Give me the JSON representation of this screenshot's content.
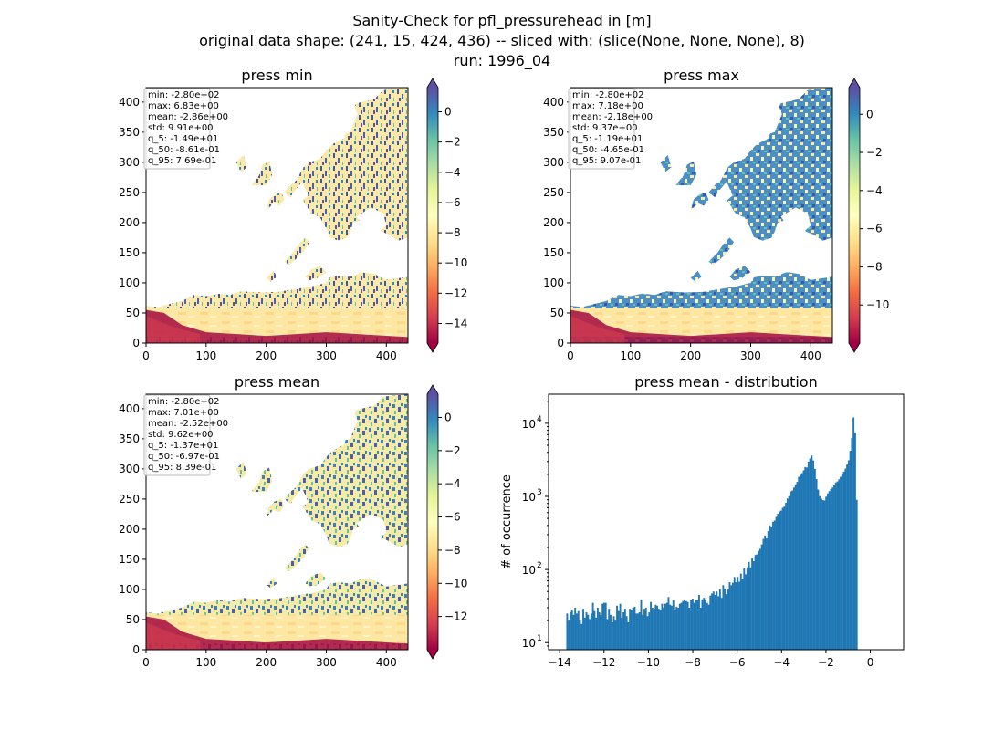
{
  "figure": {
    "title_lines": [
      "Sanity-Check for pfl_pressurehead in [m]",
      "original data shape: (241, 15, 424, 436) -- sliced with: (slice(None, None, None), 8)",
      "run: 1996_04"
    ]
  },
  "chart_data": [
    {
      "type": "heatmap",
      "title": "press min",
      "x_ticks": [
        0,
        100,
        200,
        300,
        400
      ],
      "y_ticks": [
        0,
        50,
        100,
        150,
        200,
        250,
        300,
        350,
        400
      ],
      "xlim": [
        0,
        436
      ],
      "ylim": [
        0,
        424
      ],
      "stats": [
        "min: -2.80e+02",
        "max: 6.83e+00",
        "mean: -2.86e+00",
        "std: 9.91e+00",
        "q_5: -1.49e+01",
        "q_50: -8.61e-01",
        "q_95: 7.69e-01"
      ],
      "colorbar": {
        "min": -15.3,
        "max": 1.6,
        "ticks": [
          0,
          -2,
          -4,
          -6,
          -8,
          -10,
          -12,
          -14
        ],
        "cmap": "Spectral"
      }
    },
    {
      "type": "heatmap",
      "title": "press max",
      "x_ticks": [
        0,
        100,
        200,
        300,
        400
      ],
      "y_ticks": [
        0,
        50,
        100,
        150,
        200,
        250,
        300,
        350,
        400
      ],
      "xlim": [
        0,
        436
      ],
      "ylim": [
        0,
        424
      ],
      "stats": [
        "min: -2.80e+02",
        "max: 7.18e+00",
        "mean: -2.18e+00",
        "std: 9.37e+00",
        "q_5: -1.19e+01",
        "q_50: -4.65e-01",
        "q_95: 9.07e-01"
      ],
      "colorbar": {
        "min": -12.0,
        "max": 1.4,
        "ticks": [
          0,
          -2,
          -4,
          -6,
          -8,
          -10
        ],
        "cmap": "Spectral"
      }
    },
    {
      "type": "heatmap",
      "title": "press mean",
      "x_ticks": [
        0,
        100,
        200,
        300,
        400
      ],
      "y_ticks": [
        0,
        50,
        100,
        150,
        200,
        250,
        300,
        350,
        400
      ],
      "xlim": [
        0,
        436
      ],
      "ylim": [
        0,
        424
      ],
      "stats": [
        "min: -2.80e+02",
        "max: 7.01e+00",
        "mean: -2.52e+00",
        "std: 9.62e+00",
        "q_5: -1.37e+01",
        "q_50: -6.97e-01",
        "q_95: 8.39e-01"
      ],
      "colorbar": {
        "min": -14.0,
        "max": 1.4,
        "ticks": [
          0,
          -2,
          -4,
          -6,
          -8,
          -10,
          -12
        ],
        "cmap": "Spectral"
      }
    },
    {
      "type": "bar",
      "title": "press mean - distribution",
      "xlabel": "",
      "ylabel": "# of occurrence",
      "yscale": "log",
      "color": "#1f77b4",
      "xlim": [
        -14.5,
        1.5
      ],
      "ylim": [
        8,
        25000
      ],
      "x_ticks": [
        -14,
        -12,
        -10,
        -8,
        -6,
        -4,
        -2,
        0
      ],
      "x_tick_labels": [
        "−14",
        "−12",
        "−10",
        "−8",
        "−6",
        "−4",
        "−2",
        "0"
      ],
      "y_ticks": [
        10,
        100,
        1000,
        10000
      ],
      "y_tick_labels": [
        "10",
        "10",
        "10",
        "10"
      ],
      "y_tick_exponents": [
        "1",
        "2",
        "3",
        "4"
      ],
      "bin_start": -13.7,
      "bin_width": 0.0725,
      "values": [
        25,
        20,
        26,
        28,
        24,
        30,
        25,
        27,
        20,
        18,
        29,
        22,
        26,
        24,
        21,
        25,
        35,
        27,
        22,
        30,
        26,
        24,
        34,
        35,
        35,
        21,
        29,
        24,
        19,
        23,
        20,
        32,
        27,
        34,
        22,
        26,
        29,
        23,
        19,
        29,
        28,
        30,
        31,
        25,
        25,
        26,
        39,
        24,
        29,
        30,
        23,
        26,
        36,
        30,
        29,
        33,
        32,
        29,
        28,
        34,
        30,
        34,
        35,
        42,
        33,
        32,
        38,
        28,
        31,
        30,
        34,
        35,
        37,
        38,
        37,
        36,
        30,
        38,
        40,
        35,
        38,
        38,
        45,
        30,
        39,
        41,
        38,
        35,
        33,
        44,
        47,
        50,
        45,
        50,
        43,
        54,
        41,
        61,
        55,
        46,
        53,
        67,
        61,
        66,
        79,
        67,
        79,
        68,
        88,
        75,
        103,
        86,
        107,
        127,
        107,
        143,
        130,
        158,
        161,
        180,
        192,
        220,
        262,
        292,
        266,
        336,
        402,
        380,
        450,
        468,
        525,
        580,
        620,
        640,
        700,
        724,
        819,
        937,
        1010,
        1170,
        1203,
        1320,
        1460,
        1580,
        1850,
        1970,
        2080,
        2270,
        2520,
        2480,
        2990,
        3300,
        3620,
        3100,
        2380,
        1730,
        1240,
        1010,
        930,
        890,
        880,
        990,
        1100,
        1180,
        1260,
        1320,
        1440,
        1550,
        1600,
        1710,
        1850,
        2030,
        2180,
        2400,
        2720,
        3120,
        4200,
        6300,
        12000,
        7500,
        900
      ]
    }
  ]
}
